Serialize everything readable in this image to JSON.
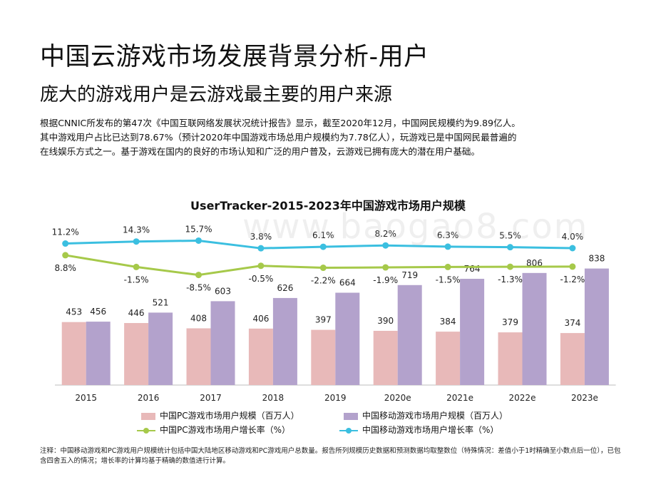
{
  "header": {
    "title": "中国云游戏市场发展背景分析-用户",
    "subtitle": "庞大的游戏用户是云游戏最主要的用户来源"
  },
  "intro": [
    "根据CNNIC所发布的第47次《中国互联网络发展状况统计报告》显示，截至2020年12月，中国网民规模约为9.89亿人。",
    "其中游戏用户占比已达到78.67%（预计2020年中国游戏市场总用户规模约为7.78亿人），玩游戏已是中国网民最普遍的",
    "在线娱乐方式之一。基于游戏在国内的良好的市场认知和广泛的用户普及，云游戏已拥有庞大的潜在用户基础。"
  ],
  "watermark": "www.baogao8.com",
  "chart_data": {
    "type": "bar",
    "title": "UserTracker-2015-2023年中国游戏市场用户规模",
    "categories": [
      "2015",
      "2016",
      "2017",
      "2018",
      "2019",
      "2020e",
      "2021e",
      "2022e",
      "2023e"
    ],
    "series": [
      {
        "name": "中国PC游戏市场用户规模（百万人）",
        "type": "bar",
        "color": "#e8b9b9",
        "values": [
          453,
          446,
          408,
          406,
          397,
          390,
          384,
          379,
          374
        ]
      },
      {
        "name": "中国移动游戏市场用户规模（百万人）",
        "type": "bar",
        "color": "#b3a2cc",
        "values": [
          456,
          521,
          603,
          626,
          664,
          719,
          764,
          806,
          838
        ]
      },
      {
        "name": "中国PC游戏市场用户增长率（%）",
        "type": "line",
        "color": "#a6c94a",
        "values": [
          8.8,
          -1.5,
          -8.5,
          -0.5,
          -2.2,
          -1.9,
          -1.5,
          -1.3,
          -1.2
        ],
        "labels": [
          "8.8%",
          "-1.5%",
          "-8.5%",
          "-0.5%",
          "-2.2%",
          "-1.9%",
          "-1.5%",
          "-1.3%",
          "-1.2%"
        ]
      },
      {
        "name": "中国移动游戏市场用户增长率（%）",
        "type": "line",
        "color": "#3bbfe0",
        "values": [
          11.2,
          14.3,
          15.7,
          3.8,
          6.1,
          8.2,
          6.3,
          5.5,
          4.0
        ],
        "labels": [
          "11.2%",
          "14.3%",
          "15.7%",
          "3.8%",
          "6.1%",
          "8.2%",
          "6.3%",
          "5.5%",
          "4.0%"
        ]
      }
    ],
    "legend_position": "bottom",
    "grid": false
  },
  "note": "注释：中国移动游戏和PC游戏用户规模统计包括中国大陆地区移动游戏和PC游戏用户总数量。报告所列规模历史数据和预测数据均取整数位（特殊情况：差值小于1时精确至小数点后一位），已包含四舍五入的情况；增长率的计算均基于精确的数值进行计算。"
}
